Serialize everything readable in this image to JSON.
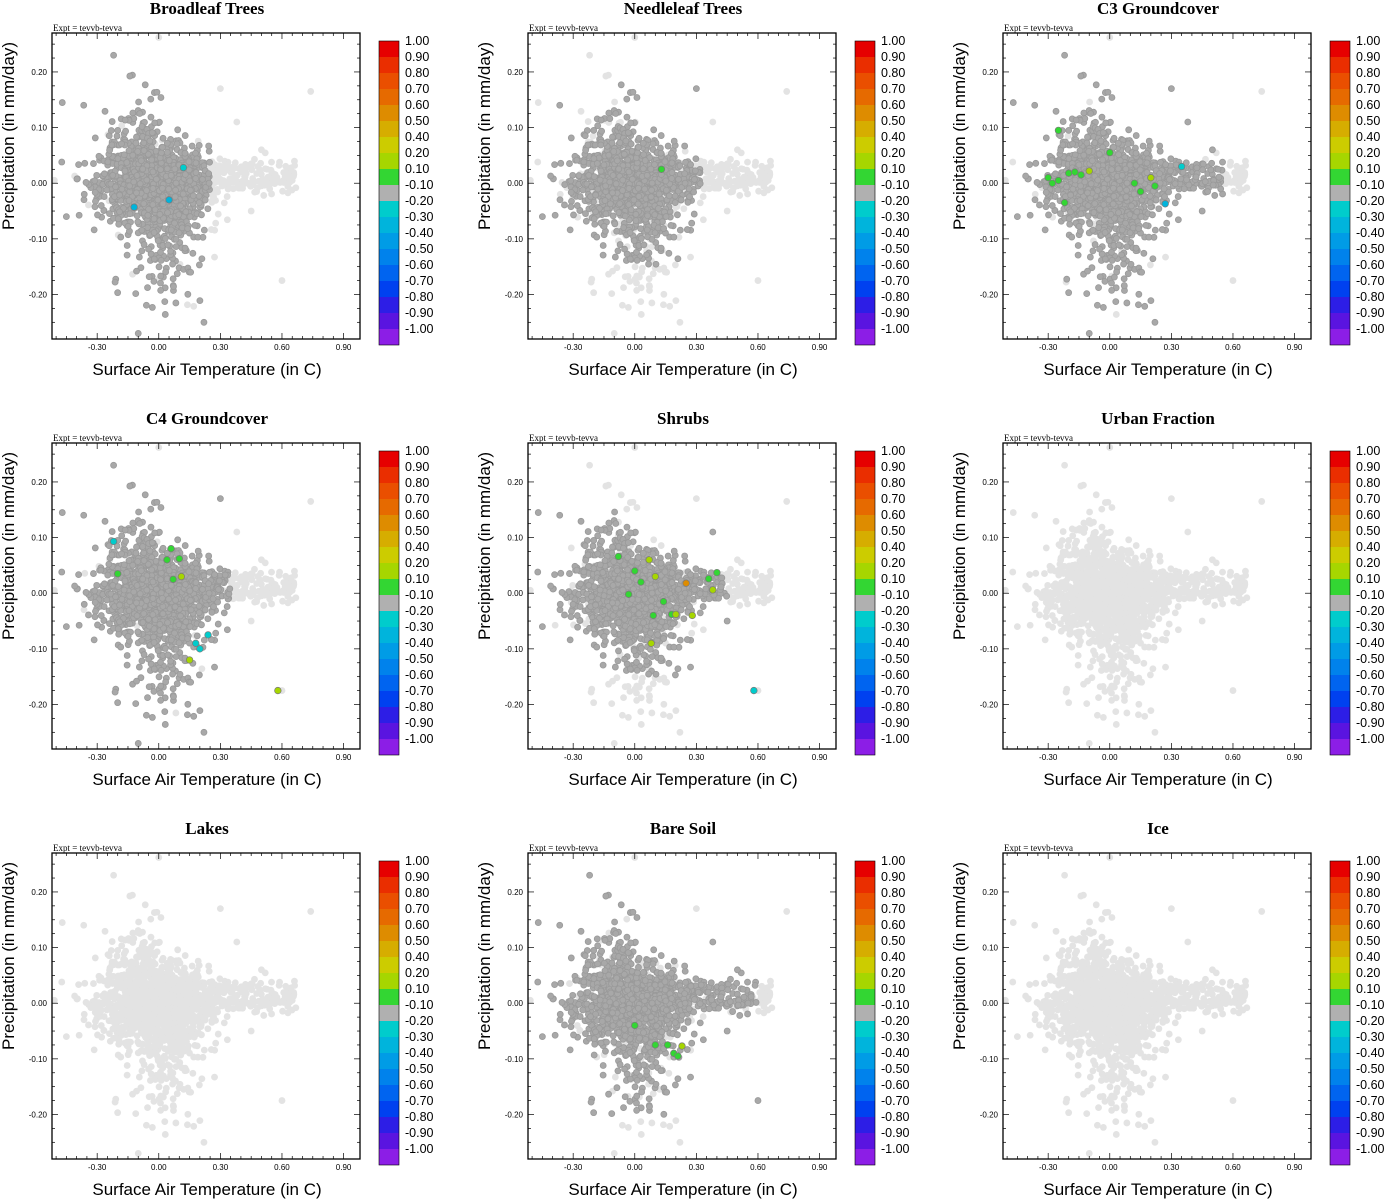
{
  "figure": {
    "expt_label": "Expt = tevvb-tevva",
    "xlabel": "Surface Air Temperature (in C)",
    "ylabel": "Precipitation (in mm/day)"
  },
  "colorbar": {
    "labels": [
      "1.00",
      "0.90",
      "0.80",
      "0.70",
      "0.60",
      "0.50",
      "0.40",
      "0.20",
      "0.10",
      "-0.10",
      "-0.20",
      "-0.30",
      "-0.40",
      "-0.50",
      "-0.60",
      "-0.70",
      "-0.80",
      "-0.90",
      "-1.00"
    ],
    "colors": [
      "#e60000",
      "#ea2e00",
      "#ea4f00",
      "#e66a00",
      "#de8c00",
      "#d6ad00",
      "#cccc00",
      "#a6d600",
      "#33d633",
      "#b0b0b0",
      "#00cccc",
      "#00b4dc",
      "#009ce6",
      "#0082ec",
      "#0064f0",
      "#0041f0",
      "#2d1ee6",
      "#5a14e0",
      "#8c1ee6"
    ]
  },
  "colors": {
    "cloud_gray": "#e3e3e3",
    "active_gray": "#a8a8a8"
  },
  "chart_data": [
    {
      "type": "scatter",
      "title": "Broadleaf Trees",
      "xlabel": "Surface Air Temperature (in C)",
      "ylabel": "Precipitation (in mm/day)",
      "xticks": [
        "-0.30",
        "0.00",
        "0.30",
        "0.60",
        "0.90"
      ],
      "yticks": [
        "0.20",
        "0.10",
        "0.00",
        "-0.10",
        "-0.20"
      ],
      "xlim": [
        -0.52,
        0.98
      ],
      "ylim": [
        -0.28,
        0.27
      ],
      "active_region": {
        "x": [
          -0.48,
          0.25
        ],
        "y": [
          -0.27,
          0.23
        ],
        "density": 0.95
      },
      "colored_points": [
        {
          "x": 0.12,
          "y": 0.028,
          "v": -0.2
        },
        {
          "x": -0.12,
          "y": -0.043,
          "v": -0.3
        },
        {
          "x": 0.05,
          "y": -0.03,
          "v": -0.3
        }
      ]
    },
    {
      "type": "scatter",
      "title": "Needleleaf Trees",
      "xlabel": "Surface Air Temperature (in C)",
      "ylabel": "Precipitation (in mm/day)",
      "xticks": [
        "-0.30",
        "0.00",
        "0.30",
        "0.60",
        "0.90"
      ],
      "yticks": [
        "0.20",
        "0.10",
        "0.00",
        "-0.10",
        "-0.20"
      ],
      "xlim": [
        -0.52,
        0.98
      ],
      "ylim": [
        -0.28,
        0.27
      ],
      "active_region": {
        "x": [
          -0.45,
          0.32
        ],
        "y": [
          -0.15,
          0.18
        ],
        "density": 0.8
      },
      "colored_points": [
        {
          "x": 0.13,
          "y": 0.025,
          "v": 0.1
        }
      ]
    },
    {
      "type": "scatter",
      "title": "C3 Groundcover",
      "xlabel": "Surface Air Temperature (in C)",
      "ylabel": "Precipitation (in mm/day)",
      "xticks": [
        "-0.30",
        "0.00",
        "0.30",
        "0.60",
        "0.90"
      ],
      "yticks": [
        "0.20",
        "0.10",
        "0.00",
        "-0.10",
        "-0.20"
      ],
      "xlim": [
        -0.52,
        0.98
      ],
      "ylim": [
        -0.28,
        0.27
      ],
      "active_region": {
        "x": [
          -0.48,
          0.55
        ],
        "y": [
          -0.28,
          0.23
        ],
        "density": 0.95
      },
      "colored_points": [
        {
          "x": -0.25,
          "y": 0.095,
          "v": 0.1
        },
        {
          "x": -0.3,
          "y": 0.01,
          "v": 0.1
        },
        {
          "x": -0.28,
          "y": 0.0,
          "v": 0.1
        },
        {
          "x": -0.25,
          "y": 0.005,
          "v": 0.1
        },
        {
          "x": -0.2,
          "y": 0.018,
          "v": 0.1
        },
        {
          "x": -0.17,
          "y": 0.02,
          "v": 0.1
        },
        {
          "x": -0.14,
          "y": 0.015,
          "v": 0.1
        },
        {
          "x": -0.1,
          "y": 0.022,
          "v": 0.3
        },
        {
          "x": -0.22,
          "y": -0.035,
          "v": 0.1
        },
        {
          "x": 0.0,
          "y": 0.055,
          "v": 0.1
        },
        {
          "x": 0.15,
          "y": -0.015,
          "v": 0.1
        },
        {
          "x": 0.2,
          "y": 0.01,
          "v": 0.3
        },
        {
          "x": 0.12,
          "y": 0.0,
          "v": 0.1
        },
        {
          "x": 0.22,
          "y": -0.005,
          "v": 0.1
        },
        {
          "x": 0.27,
          "y": -0.037,
          "v": -0.3
        },
        {
          "x": 0.35,
          "y": 0.03,
          "v": -0.2
        }
      ]
    },
    {
      "type": "scatter",
      "title": "C4 Groundcover",
      "xlabel": "Surface Air Temperature (in C)",
      "ylabel": "Precipitation (in mm/day)",
      "xticks": [
        "-0.30",
        "0.00",
        "0.30",
        "0.60",
        "0.90"
      ],
      "yticks": [
        "0.20",
        "0.10",
        "0.00",
        "-0.10",
        "-0.20"
      ],
      "xlim": [
        -0.52,
        0.98
      ],
      "ylim": [
        -0.28,
        0.27
      ],
      "active_region": {
        "x": [
          -0.48,
          0.35
        ],
        "y": [
          -0.28,
          0.23
        ],
        "density": 0.95
      },
      "colored_points": [
        {
          "x": -0.22,
          "y": 0.093,
          "v": -0.2
        },
        {
          "x": -0.2,
          "y": 0.035,
          "v": 0.1
        },
        {
          "x": 0.04,
          "y": 0.06,
          "v": 0.1
        },
        {
          "x": 0.1,
          "y": 0.062,
          "v": 0.1
        },
        {
          "x": 0.06,
          "y": 0.08,
          "v": 0.1
        },
        {
          "x": 0.07,
          "y": 0.025,
          "v": 0.1
        },
        {
          "x": 0.11,
          "y": 0.03,
          "v": 0.3
        },
        {
          "x": 0.2,
          "y": -0.1,
          "v": -0.2
        },
        {
          "x": 0.24,
          "y": -0.075,
          "v": -0.2
        },
        {
          "x": 0.18,
          "y": -0.09,
          "v": -0.2
        },
        {
          "x": 0.15,
          "y": -0.12,
          "v": 0.3
        },
        {
          "x": 0.58,
          "y": -0.175,
          "v": 0.3
        }
      ]
    },
    {
      "type": "scatter",
      "title": "Shrubs",
      "xlabel": "Surface Air Temperature (in C)",
      "ylabel": "Precipitation (in mm/day)",
      "xticks": [
        "-0.30",
        "0.00",
        "0.30",
        "0.60",
        "0.90"
      ],
      "yticks": [
        "0.20",
        "0.10",
        "0.00",
        "-0.10",
        "-0.20"
      ],
      "xlim": [
        -0.52,
        0.98
      ],
      "ylim": [
        -0.28,
        0.27
      ],
      "active_region": {
        "x": [
          -0.48,
          0.45
        ],
        "y": [
          -0.15,
          0.15
        ],
        "density": 0.85
      },
      "colored_points": [
        {
          "x": -0.08,
          "y": 0.066,
          "v": 0.1
        },
        {
          "x": 0.07,
          "y": 0.06,
          "v": 0.3
        },
        {
          "x": 0.0,
          "y": 0.04,
          "v": 0.1
        },
        {
          "x": 0.03,
          "y": 0.02,
          "v": 0.1
        },
        {
          "x": -0.03,
          "y": -0.002,
          "v": 0.1
        },
        {
          "x": 0.1,
          "y": 0.03,
          "v": 0.3
        },
        {
          "x": 0.14,
          "y": -0.015,
          "v": 0.1
        },
        {
          "x": 0.09,
          "y": -0.04,
          "v": 0.1
        },
        {
          "x": 0.18,
          "y": -0.038,
          "v": 0.1
        },
        {
          "x": 0.2,
          "y": -0.038,
          "v": 0.3
        },
        {
          "x": 0.28,
          "y": -0.04,
          "v": 0.3
        },
        {
          "x": 0.25,
          "y": 0.018,
          "v": 0.6
        },
        {
          "x": 0.36,
          "y": 0.026,
          "v": 0.1
        },
        {
          "x": 0.4,
          "y": 0.037,
          "v": 0.1
        },
        {
          "x": 0.38,
          "y": 0.006,
          "v": 0.3
        },
        {
          "x": 0.08,
          "y": -0.09,
          "v": 0.3
        },
        {
          "x": 0.58,
          "y": -0.175,
          "v": -0.2
        }
      ]
    },
    {
      "type": "scatter",
      "title": "Urban Fraction",
      "xlabel": "Surface Air Temperature (in C)",
      "ylabel": "Precipitation (in mm/day)",
      "xticks": [
        "-0.30",
        "0.00",
        "0.30",
        "0.60",
        "0.90"
      ],
      "yticks": [
        "0.20",
        "0.10",
        "0.00",
        "-0.10",
        "-0.20"
      ],
      "xlim": [
        -0.52,
        0.98
      ],
      "ylim": [
        -0.28,
        0.27
      ],
      "active_region": null,
      "colored_points": []
    },
    {
      "type": "scatter",
      "title": "Lakes",
      "xlabel": "Surface Air Temperature (in C)",
      "ylabel": "Precipitation (in mm/day)",
      "xticks": [
        "-0.30",
        "0.00",
        "0.30",
        "0.60",
        "0.90"
      ],
      "yticks": [
        "0.20",
        "0.10",
        "0.00",
        "-0.10",
        "-0.20"
      ],
      "xlim": [
        -0.52,
        0.98
      ],
      "ylim": [
        -0.28,
        0.27
      ],
      "active_region": null,
      "colored_points": []
    },
    {
      "type": "scatter",
      "title": "Bare Soil",
      "xlabel": "Surface Air Temperature (in C)",
      "ylabel": "Precipitation (in mm/day)",
      "xticks": [
        "-0.30",
        "0.00",
        "0.30",
        "0.60",
        "0.90"
      ],
      "yticks": [
        "0.20",
        "0.10",
        "0.00",
        "-0.10",
        "-0.20"
      ],
      "xlim": [
        -0.52,
        0.98
      ],
      "ylim": [
        -0.28,
        0.27
      ],
      "active_region": {
        "x": [
          -0.48,
          0.6
        ],
        "y": [
          -0.2,
          0.23
        ],
        "density": 0.85
      },
      "colored_points": [
        {
          "x": 0.0,
          "y": -0.04,
          "v": 0.1
        },
        {
          "x": 0.1,
          "y": -0.075,
          "v": 0.1
        },
        {
          "x": 0.16,
          "y": -0.075,
          "v": 0.1
        },
        {
          "x": 0.23,
          "y": -0.077,
          "v": 0.3
        },
        {
          "x": 0.19,
          "y": -0.09,
          "v": 0.1
        },
        {
          "x": 0.21,
          "y": -0.095,
          "v": 0.1
        }
      ]
    },
    {
      "type": "scatter",
      "title": "Ice",
      "xlabel": "Surface Air Temperature (in C)",
      "ylabel": "Precipitation (in mm/day)",
      "xticks": [
        "-0.30",
        "0.00",
        "0.30",
        "0.60",
        "0.90"
      ],
      "yticks": [
        "0.20",
        "0.10",
        "0.00",
        "-0.10",
        "-0.20"
      ],
      "xlim": [
        -0.52,
        0.98
      ],
      "ylim": [
        -0.28,
        0.27
      ],
      "active_region": null,
      "colored_points": []
    }
  ]
}
